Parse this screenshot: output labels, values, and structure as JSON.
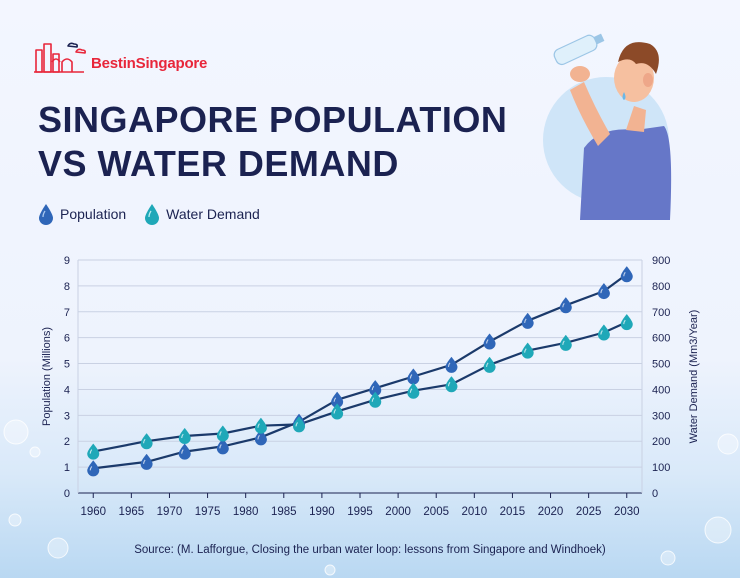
{
  "brand": {
    "name_red": "Bestin",
    "name_dark": "Singapore"
  },
  "title_line1": "SINGAPORE POPULATION",
  "title_line2": "VS WATER DEMAND",
  "legend": [
    {
      "label": "Population",
      "color": "#2f66b8"
    },
    {
      "label": "Water Demand",
      "color": "#1fa8b8"
    }
  ],
  "source": "Source: (M. Lafforgue, Closing the urban water loop: lessons from Singapore and Windhoek)",
  "chart_data": {
    "type": "line",
    "x_ticks": [
      1960,
      1965,
      1970,
      1975,
      1980,
      1985,
      1990,
      1995,
      2000,
      2005,
      2010,
      2015,
      2020,
      2025,
      2030
    ],
    "xlim": [
      1958,
      2032
    ],
    "ylabel_left": "Population (Millions)",
    "ylabel_right": "Water Demand (Mm3/Year)",
    "ylim_left": [
      0,
      9
    ],
    "ylim_right": [
      0,
      900
    ],
    "yticks_left": [
      0,
      1,
      2,
      3,
      4,
      5,
      6,
      7,
      8,
      9
    ],
    "yticks_right": [
      0,
      100,
      200,
      300,
      400,
      500,
      600,
      700,
      800,
      900
    ],
    "grid": "horizontal",
    "legend_position": "top-left",
    "series": [
      {
        "name": "Population",
        "axis": "left",
        "color": "#1b3a6b",
        "marker_color": "#2f66b8",
        "x": [
          1960,
          1967,
          1972,
          1977,
          1982,
          1987,
          1992,
          1997,
          2002,
          2007,
          2012,
          2017,
          2022,
          2027,
          2030
        ],
        "y": [
          0.95,
          1.2,
          1.6,
          1.8,
          2.15,
          2.75,
          3.6,
          4.05,
          4.5,
          4.95,
          5.85,
          6.65,
          7.25,
          7.8,
          8.45
        ]
      },
      {
        "name": "Water Demand",
        "axis": "right",
        "color": "#1b3a6b",
        "marker_color": "#1fa8b8",
        "x": [
          1960,
          1967,
          1972,
          1977,
          1982,
          1987,
          1992,
          1997,
          2002,
          2007,
          2012,
          2017,
          2022,
          2027,
          2030
        ],
        "y": [
          160,
          200,
          220,
          230,
          260,
          265,
          315,
          360,
          395,
          420,
          495,
          550,
          580,
          620,
          660
        ]
      }
    ]
  }
}
